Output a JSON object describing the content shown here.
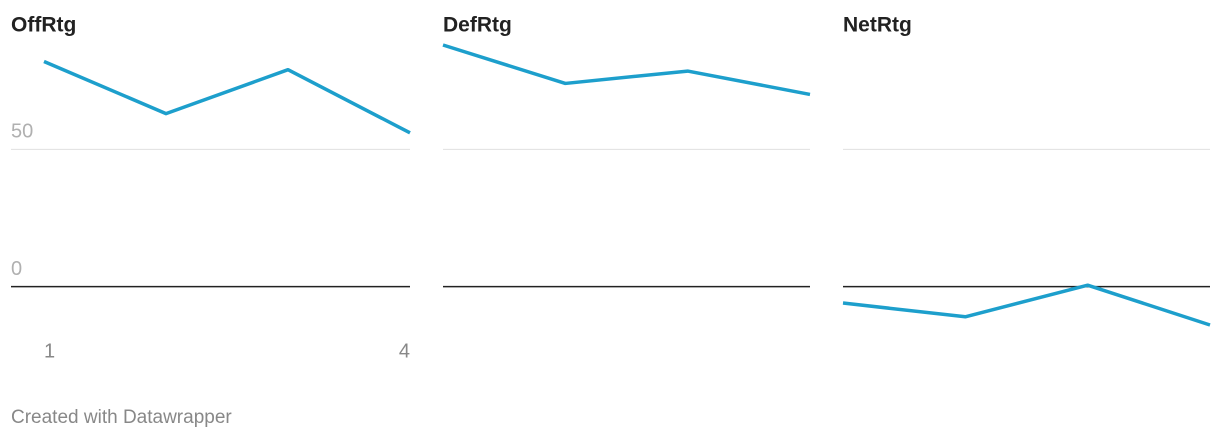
{
  "chart_data": [
    {
      "type": "line",
      "title": "OffRtg",
      "x": [
        1,
        2,
        3,
        4
      ],
      "xlim": [
        1,
        4
      ],
      "xticks": [
        1,
        4
      ],
      "series": [
        {
          "name": "OffRtg",
          "color": "#1d9fcc",
          "values": [
            82,
            63,
            79,
            56
          ]
        }
      ],
      "ylim": [
        -14,
        88
      ],
      "yticks": [
        0,
        50
      ],
      "grid": true
    },
    {
      "type": "line",
      "title": "DefRtg",
      "x": [
        1,
        2,
        3,
        4
      ],
      "xlim": [
        1,
        4
      ],
      "series": [
        {
          "name": "DefRtg",
          "color": "#1d9fcc",
          "values": [
            88,
            74,
            78.5,
            70
          ]
        }
      ],
      "ylim": [
        -14,
        88
      ],
      "grid": true
    },
    {
      "type": "line",
      "title": "NetRtg",
      "x": [
        1,
        2,
        3,
        4
      ],
      "xlim": [
        1,
        4
      ],
      "series": [
        {
          "name": "NetRtg",
          "color": "#1d9fcc",
          "values": [
            -6,
            -11,
            0.5,
            -14
          ]
        }
      ],
      "ylim": [
        -14,
        88
      ],
      "grid": true
    }
  ],
  "footer": "Created with Datawrapper"
}
